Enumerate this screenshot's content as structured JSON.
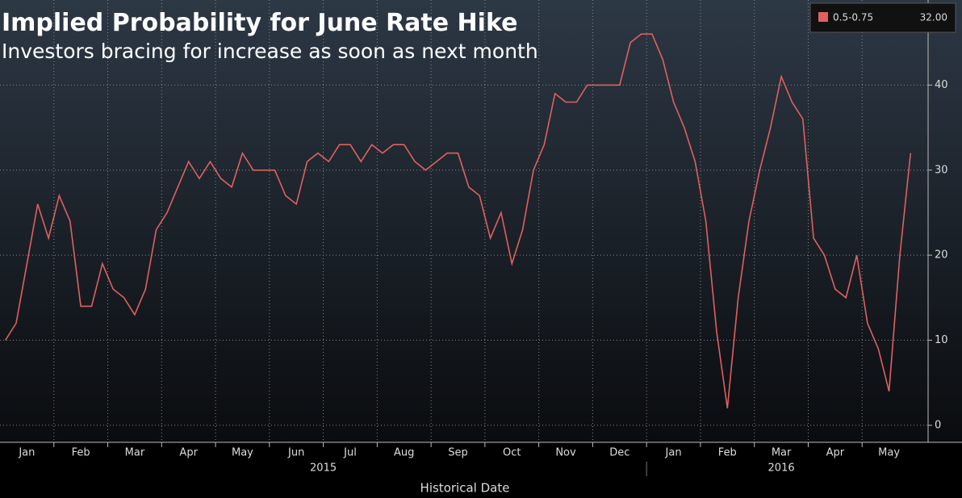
{
  "chart_data": {
    "type": "line",
    "title": "Implied Probability for June Rate Hike",
    "subtitle": "Investors bracing for increase as soon as next month",
    "x_label": "Historical Date",
    "categories": [
      null,
      null,
      "Jan",
      null,
      null,
      null,
      null,
      "Feb",
      null,
      null,
      null,
      null,
      "Mar",
      null,
      null,
      null,
      null,
      "Apr",
      null,
      null,
      null,
      null,
      "May",
      null,
      null,
      null,
      null,
      "Jun",
      null,
      null,
      null,
      null,
      "Jul",
      null,
      null,
      null,
      null,
      "Aug",
      null,
      null,
      null,
      null,
      "Sep",
      null,
      null,
      null,
      null,
      "Oct",
      null,
      null,
      null,
      null,
      "Nov",
      null,
      null,
      null,
      null,
      "Dec",
      null,
      null,
      null,
      null,
      "Jan",
      null,
      null,
      null,
      null,
      "Feb",
      null,
      null,
      null,
      null,
      "Mar",
      null,
      null,
      null,
      null,
      "Apr",
      null,
      null,
      null,
      null,
      "May",
      null,
      null
    ],
    "years": [
      "2015",
      "2016"
    ],
    "series": [
      {
        "name": "0.5-0.75",
        "color": "#e0605e",
        "legend_value": "32.00",
        "values": [
          10,
          12,
          19,
          26,
          22,
          27,
          24,
          14,
          14,
          19,
          16,
          15,
          13,
          16,
          23,
          25,
          28,
          31,
          29,
          31,
          29,
          28,
          32,
          30,
          30,
          30,
          27,
          26,
          31,
          32,
          31,
          33,
          33,
          31,
          33,
          32,
          33,
          33,
          31,
          30,
          31,
          32,
          32,
          28,
          27,
          22,
          25,
          19,
          23,
          30,
          33,
          39,
          38,
          38,
          40,
          40,
          40,
          40,
          45,
          46,
          46,
          43,
          38,
          35,
          31,
          24,
          11,
          2,
          15,
          24,
          30,
          35,
          41,
          38,
          36,
          22,
          20,
          16,
          15,
          20,
          12,
          9,
          4,
          20,
          32
        ]
      }
    ],
    "ylim": [
      -2,
      50
    ],
    "yticks": [
      0,
      10,
      20,
      30,
      40
    ],
    "grid": true,
    "legend_position": "upper right"
  }
}
